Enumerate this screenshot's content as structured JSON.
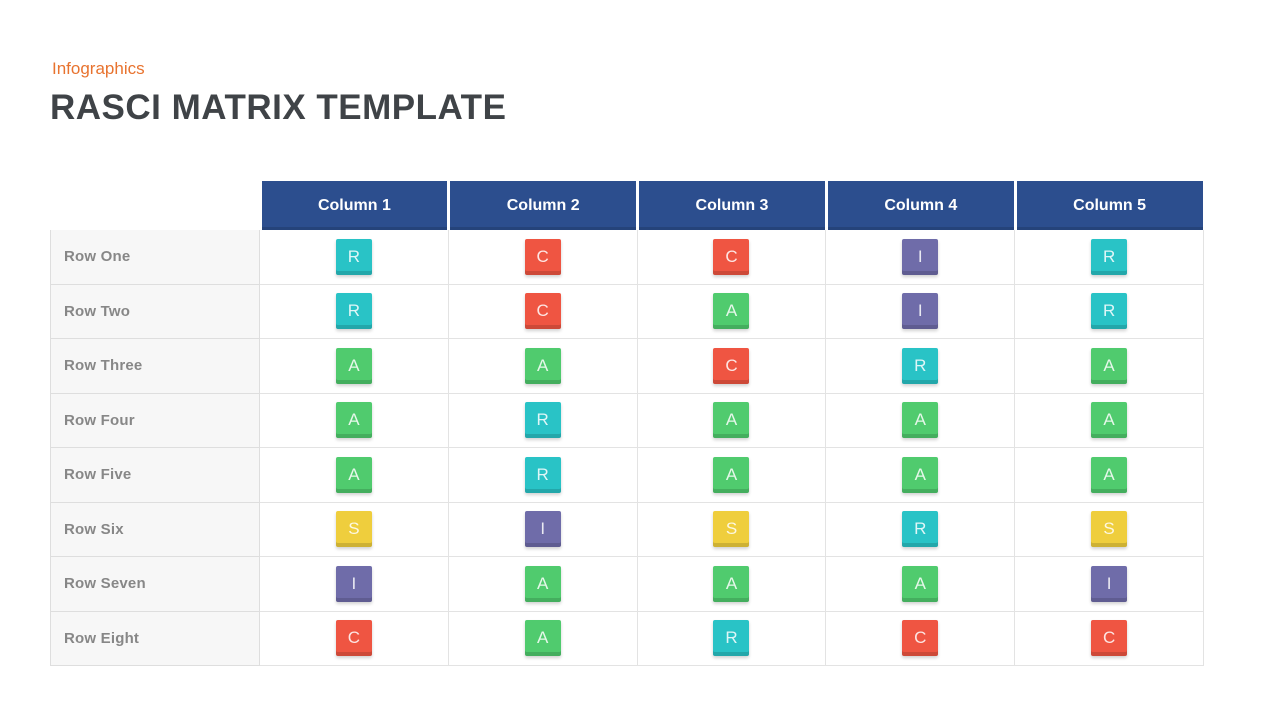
{
  "page": {
    "eyebrow": "Infographics",
    "eyebrow_color": "#e8732f",
    "title": "RASCI MATRIX TEMPLATE",
    "title_color": "#3f4347",
    "background": "#ffffff"
  },
  "table": {
    "header_bg": "#2c4e8e",
    "header_text_color": "#ffffff",
    "label_column_bg": "#f7f7f7",
    "border_color": "#e3e3e3",
    "columns": [
      "Column 1",
      "Column 2",
      "Column 3",
      "Column 4",
      "Column 5"
    ],
    "rows": [
      {
        "label": "Row One",
        "cells": [
          "R",
          "C",
          "C",
          "I",
          "R"
        ]
      },
      {
        "label": "Row Two",
        "cells": [
          "R",
          "C",
          "A",
          "I",
          "R"
        ]
      },
      {
        "label": "Row Three",
        "cells": [
          "A",
          "A",
          "C",
          "R",
          "A"
        ]
      },
      {
        "label": "Row Four",
        "cells": [
          "A",
          "R",
          "A",
          "A",
          "A"
        ]
      },
      {
        "label": "Row Five",
        "cells": [
          "A",
          "R",
          "A",
          "A",
          "A"
        ]
      },
      {
        "label": "Row Six",
        "cells": [
          "S",
          "I",
          "S",
          "R",
          "S"
        ]
      },
      {
        "label": "Row Seven",
        "cells": [
          "I",
          "A",
          "A",
          "A",
          "I"
        ]
      },
      {
        "label": "Row Eight",
        "cells": [
          "C",
          "A",
          "R",
          "C",
          "C"
        ]
      }
    ],
    "badge_colors": {
      "R": "#29c3c6",
      "A": "#50cb6e",
      "S": "#efce3d",
      "C": "#ef5542",
      "I": "#6f6ca9"
    }
  }
}
